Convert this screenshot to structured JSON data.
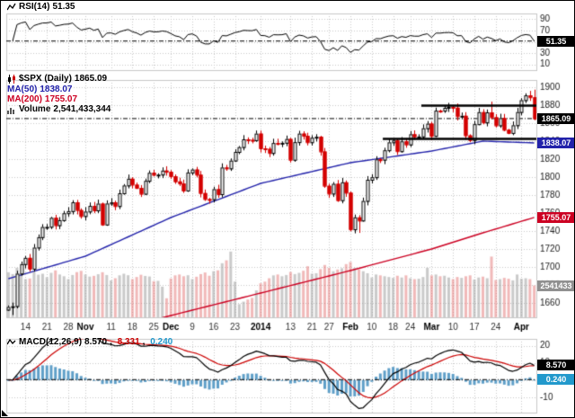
{
  "panels": {
    "rsi": {
      "label": "RSI(14)",
      "value": "51.35"
    },
    "price": {
      "symbol_label": "$SPX (Daily)",
      "value": "1865.09",
      "ma50_label": "MA(50)",
      "ma50_value": "1838.07",
      "ma200_label": "MA(200)",
      "ma200_value": "1755.07",
      "volume_label": "Volume",
      "volume_value": "2,541,433,344",
      "volume_axis_value": "2541433"
    },
    "macd": {
      "label": "MACD(12,26,9)",
      "macd_value": "8.570",
      "sep": ", ",
      "signal_value": "8.331",
      "hist_value": "0.240"
    }
  },
  "colors": {
    "up_candle": "#000000",
    "down_candle": "#d40000",
    "ma50": "#2222aa",
    "ma200": "#cc0022",
    "rsi_line": "#000000",
    "macd_line": "#000000",
    "signal_line": "#cc0000",
    "hist_bar": "#5f9fc8",
    "hist_label": "#2299cc",
    "vol_up": "rgba(150,150,150,0.50)",
    "vol_down": "rgba(225,100,100,0.45)",
    "grid": "#c8c8c8",
    "axis_text": "#1a1a1a",
    "box_black": "#000000",
    "box_blue": "#2222aa",
    "box_red": "#cc0022",
    "box_gray": "#909090",
    "box_lblue": "#2299cc",
    "annotation": "#000000"
  },
  "chart_data": {
    "type": "candlestick",
    "symbol": "$SPX",
    "timeframe": "Daily",
    "current": {
      "rsi": 51.35,
      "price": 1865.09,
      "ma50": 1838.07,
      "ma200": 1755.07,
      "volume_billions": 2.541433344,
      "macd": 8.57,
      "signal": 8.331,
      "hist": 0.24
    },
    "price_axis": {
      "min": 1644,
      "max": 1908,
      "ticks": [
        1900,
        1880,
        1860,
        1840,
        1820,
        1800,
        1780,
        1760,
        1740,
        1720,
        1700,
        1680,
        1660
      ]
    },
    "rsi_axis": {
      "min": 0,
      "max": 100,
      "ticks": [
        90,
        70,
        50,
        30,
        10
      ]
    },
    "macd_axis": {
      "min": -19,
      "max": 24,
      "ticks": [
        20,
        10,
        0,
        -10
      ]
    },
    "volume_axis": {
      "max_billions": 5.6
    },
    "x_ticks": [
      {
        "l": "14",
        "d": "2013-10-14"
      },
      {
        "l": "21",
        "d": "2013-10-21"
      },
      {
        "l": "28",
        "d": "2013-10-28"
      },
      {
        "l": "Nov",
        "d": "2013-11-01",
        "b": 1
      },
      {
        "l": "11",
        "d": "2013-11-11"
      },
      {
        "l": "18",
        "d": "2013-11-18"
      },
      {
        "l": "25",
        "d": "2013-11-25"
      },
      {
        "l": "Dec",
        "d": "2013-12-02",
        "b": 1
      },
      {
        "l": "9",
        "d": "2013-12-09"
      },
      {
        "l": "16",
        "d": "2013-12-16"
      },
      {
        "l": "23",
        "d": "2013-12-23"
      },
      {
        "l": "2014",
        "d": "2014-01-02",
        "b": 1
      },
      {
        "l": "13",
        "d": "2014-01-13"
      },
      {
        "l": "21",
        "d": "2014-01-21"
      },
      {
        "l": "27",
        "d": "2014-01-27"
      },
      {
        "l": "Feb",
        "d": "2014-02-03",
        "b": 1
      },
      {
        "l": "10",
        "d": "2014-02-10"
      },
      {
        "l": "18",
        "d": "2014-02-18"
      },
      {
        "l": "24",
        "d": "2014-02-24"
      },
      {
        "l": "Mar",
        "d": "2014-03-03",
        "b": 1
      },
      {
        "l": "10",
        "d": "2014-03-10"
      },
      {
        "l": "17",
        "d": "2014-03-17"
      },
      {
        "l": "24",
        "d": "2014-03-24"
      },
      {
        "l": "Apr",
        "d": "2014-04-01",
        "b": 1
      }
    ],
    "annotations": [
      {
        "type": "hline",
        "price": 1879.5,
        "from": "2014-02-27"
      },
      {
        "type": "hline",
        "price": 1842.5,
        "from": "2014-02-13"
      }
    ],
    "ma50_keypoints": [
      [
        0,
        1687
      ],
      [
        18,
        1712
      ],
      [
        38,
        1755
      ],
      [
        59,
        1793
      ],
      [
        80,
        1816
      ],
      [
        99,
        1829
      ],
      [
        111,
        1840
      ],
      [
        123,
        1838.07
      ]
    ],
    "ma200_keypoints": [
      [
        0,
        1601
      ],
      [
        18,
        1621
      ],
      [
        38,
        1646
      ],
      [
        59,
        1671
      ],
      [
        80,
        1696
      ],
      [
        99,
        1720
      ],
      [
        111,
        1738
      ],
      [
        123,
        1755.07
      ]
    ],
    "extremes": {
      "2013-10-09": {
        "low": 1646.47
      },
      "2014-02-03": {
        "low": 1739.66
      },
      "2014-02-05": {
        "low": 1737.92
      },
      "2014-03-21": {
        "high": 1883.97
      },
      "2014-04-02": {
        "high": 1893.17
      },
      "2014-04-04": {
        "high": 1897.28,
        "low": 1863.26
      }
    },
    "dates": [
      "2013-10-08",
      "2013-10-09",
      "2013-10-10",
      "2013-10-11",
      "2013-10-14",
      "2013-10-15",
      "2013-10-16",
      "2013-10-17",
      "2013-10-18",
      "2013-10-21",
      "2013-10-22",
      "2013-10-23",
      "2013-10-24",
      "2013-10-25",
      "2013-10-28",
      "2013-10-29",
      "2013-10-30",
      "2013-10-31",
      "2013-11-01",
      "2013-11-04",
      "2013-11-05",
      "2013-11-06",
      "2013-11-07",
      "2013-11-08",
      "2013-11-11",
      "2013-11-12",
      "2013-11-13",
      "2013-11-14",
      "2013-11-15",
      "2013-11-18",
      "2013-11-19",
      "2013-11-20",
      "2013-11-21",
      "2013-11-22",
      "2013-11-25",
      "2013-11-26",
      "2013-11-27",
      "2013-11-29",
      "2013-12-02",
      "2013-12-03",
      "2013-12-04",
      "2013-12-05",
      "2013-12-06",
      "2013-12-09",
      "2013-12-10",
      "2013-12-11",
      "2013-12-12",
      "2013-12-13",
      "2013-12-16",
      "2013-12-17",
      "2013-12-18",
      "2013-12-19",
      "2013-12-20",
      "2013-12-23",
      "2013-12-24",
      "2013-12-26",
      "2013-12-27",
      "2013-12-30",
      "2013-12-31",
      "2014-01-02",
      "2014-01-03",
      "2014-01-06",
      "2014-01-07",
      "2014-01-08",
      "2014-01-09",
      "2014-01-10",
      "2014-01-13",
      "2014-01-14",
      "2014-01-15",
      "2014-01-16",
      "2014-01-17",
      "2014-01-21",
      "2014-01-22",
      "2014-01-23",
      "2014-01-24",
      "2014-01-27",
      "2014-01-28",
      "2014-01-29",
      "2014-01-30",
      "2014-01-31",
      "2014-02-03",
      "2014-02-04",
      "2014-02-05",
      "2014-02-06",
      "2014-02-07",
      "2014-02-10",
      "2014-02-11",
      "2014-02-12",
      "2014-02-13",
      "2014-02-14",
      "2014-02-18",
      "2014-02-19",
      "2014-02-20",
      "2014-02-21",
      "2014-02-24",
      "2014-02-25",
      "2014-02-26",
      "2014-02-27",
      "2014-02-28",
      "2014-03-03",
      "2014-03-04",
      "2014-03-05",
      "2014-03-06",
      "2014-03-07",
      "2014-03-10",
      "2014-03-11",
      "2014-03-12",
      "2014-03-13",
      "2014-03-14",
      "2014-03-17",
      "2014-03-18",
      "2014-03-19",
      "2014-03-20",
      "2014-03-21",
      "2014-03-24",
      "2014-03-25",
      "2014-03-26",
      "2014-03-27",
      "2014-03-28",
      "2014-03-31",
      "2014-04-01",
      "2014-04-02",
      "2014-04-03",
      "2014-04-04"
    ],
    "close": [
      1655.45,
      1656.4,
      1692.56,
      1703.2,
      1710.14,
      1698.06,
      1721.54,
      1733.15,
      1744.5,
      1744.66,
      1754.67,
      1746.38,
      1752.07,
      1759.77,
      1762.11,
      1771.95,
      1763.31,
      1756.54,
      1761.64,
      1767.93,
      1762.97,
      1770.49,
      1747.15,
      1770.61,
      1771.89,
      1767.69,
      1782.0,
      1790.62,
      1798.18,
      1791.53,
      1787.87,
      1781.37,
      1795.85,
      1804.76,
      1802.48,
      1802.75,
      1807.23,
      1805.81,
      1800.9,
      1795.15,
      1792.81,
      1785.03,
      1805.09,
      1808.37,
      1802.62,
      1782.22,
      1775.5,
      1775.32,
      1786.54,
      1781.0,
      1810.65,
      1809.6,
      1818.32,
      1827.99,
      1833.32,
      1842.02,
      1841.4,
      1841.07,
      1848.36,
      1831.98,
      1831.37,
      1826.77,
      1837.88,
      1837.49,
      1838.13,
      1842.37,
      1819.2,
      1838.88,
      1848.38,
      1845.89,
      1838.7,
      1843.8,
      1844.86,
      1828.46,
      1790.29,
      1781.56,
      1792.5,
      1774.2,
      1794.19,
      1782.59,
      1741.89,
      1755.2,
      1751.64,
      1773.43,
      1797.02,
      1799.84,
      1819.75,
      1819.26,
      1829.83,
      1838.63,
      1840.76,
      1828.75,
      1839.78,
      1836.25,
      1847.61,
      1845.12,
      1845.16,
      1854.29,
      1859.45,
      1845.73,
      1873.91,
      1873.81,
      1877.03,
      1878.04,
      1877.17,
      1867.63,
      1868.2,
      1846.34,
      1841.13,
      1858.83,
      1872.25,
      1860.77,
      1872.01,
      1866.52,
      1857.44,
      1865.62,
      1852.56,
      1849.04,
      1857.62,
      1872.34,
      1885.52,
      1890.9,
      1888.77,
      1865.09
    ],
    "volume_billions": [
      3.6,
      3.45,
      3.95,
      3.35,
      3.05,
      3.1,
      3.62,
      3.4,
      3.48,
      3.2,
      3.55,
      3.75,
      3.42,
      3.28,
      3.05,
      3.38,
      3.61,
      3.71,
      3.42,
      3.25,
      3.31,
      3.44,
      3.6,
      3.38,
      2.95,
      3.12,
      3.35,
      3.48,
      3.36,
      3.05,
      3.22,
      3.4,
      3.3,
      3.26,
      2.88,
      2.91,
      2.45,
      1.52,
      3.1,
      3.35,
      3.42,
      3.28,
      3.36,
      3.05,
      3.24,
      3.45,
      3.58,
      3.32,
      3.68,
      3.75,
      4.32,
      4.55,
      5.25,
      2.85,
      1.05,
      1.25,
      1.42,
      1.55,
      2.15,
      2.72,
      2.85,
      3.12,
      3.35,
      3.42,
      3.28,
      3.38,
      3.62,
      3.45,
      3.55,
      3.72,
      4.08,
      3.48,
      3.52,
      3.85,
      4.18,
      3.95,
      3.68,
      3.82,
      3.92,
      4.25,
      4.42,
      3.95,
      3.82,
      3.68,
      3.52,
      3.18,
      3.42,
      3.35,
      3.28,
      3.22,
      3.15,
      3.32,
      3.18,
      3.35,
      3.12,
      3.05,
      3.08,
      3.22,
      3.95,
      3.35,
      3.42,
      3.28,
      3.32,
      3.18,
      3.05,
      3.22,
      3.15,
      3.28,
      3.35,
      3.02,
      3.18,
      3.25,
      3.12,
      4.85,
      2.98,
      3.05,
      3.15,
      3.08,
      2.95,
      3.42,
      3.08,
      3.12,
      3.05,
      2.54
    ]
  }
}
